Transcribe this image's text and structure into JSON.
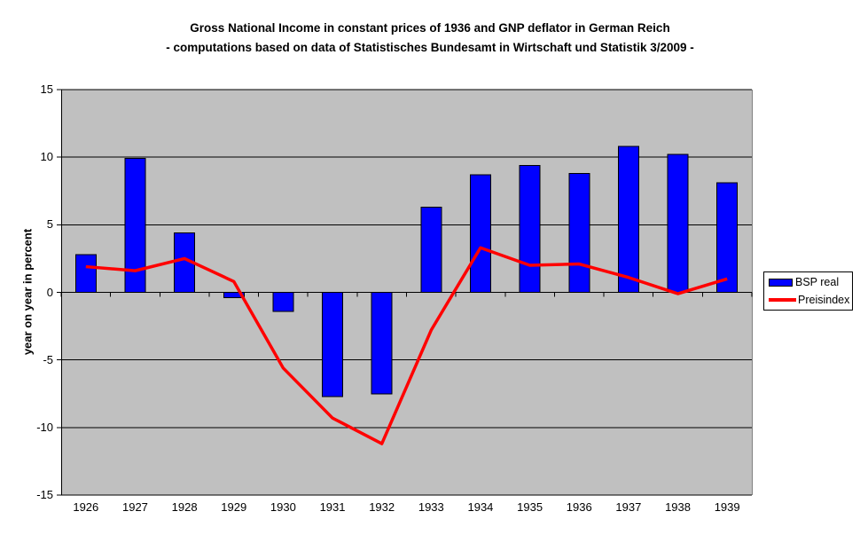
{
  "title": {
    "line1": "Gross National Income in constant prices of 1936 and GNP deflator in German Reich",
    "line2": "- computations based on data of Statistisches Bundesamt in Wirtschaft und Statistik 3/2009 -"
  },
  "y_axis": {
    "title": "year on year in percent",
    "ticks": [
      15,
      10,
      5,
      0,
      -5,
      -10,
      -15
    ]
  },
  "legend": {
    "position": "right",
    "items": [
      {
        "label": "BSP real",
        "color": "#0000ff",
        "type": "bar"
      },
      {
        "label": "Preisindex",
        "color": "#ff0000",
        "type": "line"
      }
    ]
  },
  "colors": {
    "plot_background": "#c0c0c0",
    "gridline": "#000000",
    "plot_right_border": "#808080",
    "bar_fill": "#0000ff",
    "bar_border": "#000000",
    "line_stroke": "#ff0000",
    "text": "#000000",
    "chart_background": "#ffffff"
  },
  "chart_data": {
    "type": "bar",
    "title": "Gross National Income in constant prices of 1936 and GNP deflator in German Reich - computations based on data of Statistisches Bundesamt in Wirtschaft und Statistik 3/2009 -",
    "xlabel": "",
    "ylabel": "year on year in percent",
    "ylim": [
      -15,
      15
    ],
    "yticks": [
      15,
      10,
      5,
      0,
      -5,
      -10,
      -15
    ],
    "grid": true,
    "legend_position": "right",
    "categories": [
      "1926",
      "1927",
      "1928",
      "1929",
      "1930",
      "1931",
      "1932",
      "1933",
      "1934",
      "1935",
      "1936",
      "1937",
      "1938",
      "1939"
    ],
    "series": [
      {
        "name": "BSP real",
        "type": "bar",
        "color": "#0000ff",
        "values": [
          2.8,
          9.9,
          4.4,
          -0.4,
          -1.4,
          -7.7,
          -7.5,
          6.3,
          8.7,
          9.4,
          8.8,
          10.8,
          10.2,
          8.1
        ]
      },
      {
        "name": "Preisindex",
        "type": "line",
        "color": "#ff0000",
        "values": [
          1.9,
          1.6,
          2.5,
          0.8,
          -5.6,
          -9.3,
          -11.2,
          -2.8,
          3.3,
          2.0,
          2.1,
          1.1,
          -0.1,
          1.0
        ]
      }
    ]
  }
}
